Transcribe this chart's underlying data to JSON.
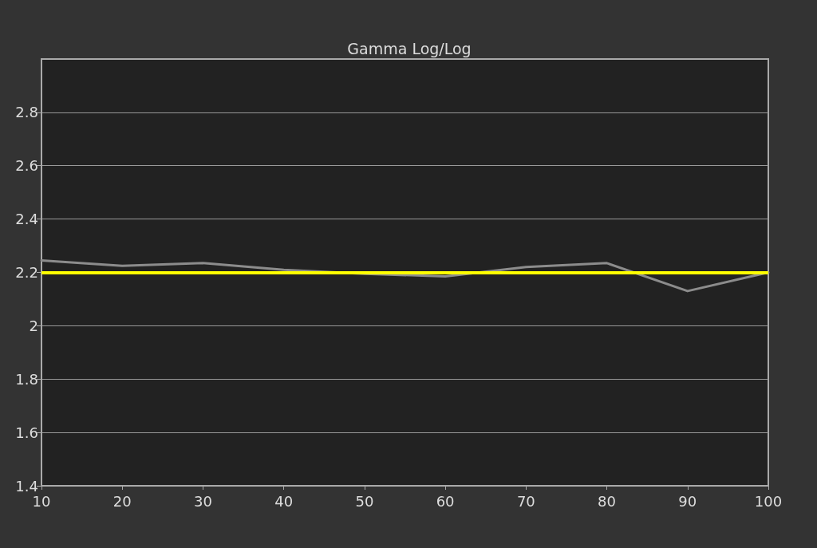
{
  "chart_data": {
    "type": "line",
    "title": "Gamma Log/Log",
    "x": [
      10,
      20,
      30,
      40,
      50,
      60,
      70,
      80,
      90,
      100
    ],
    "series": [
      {
        "color": "#8c8c8c",
        "values": [
          2.245,
          2.225,
          2.235,
          2.21,
          2.195,
          2.185,
          2.22,
          2.235,
          2.13,
          2.2
        ]
      }
    ],
    "xlim": [
      10,
      100
    ],
    "xticks": [
      10,
      20,
      30,
      40,
      50,
      60,
      70,
      80,
      90,
      100
    ],
    "ylim": [
      1.4,
      3.0
    ],
    "yticks": [
      1.4,
      1.6,
      1.8,
      2,
      2.2,
      2.4,
      2.6,
      2.8
    ],
    "ref_lines": [
      {
        "axis": "y",
        "value": 2.2,
        "color": "#ffff00"
      }
    ],
    "grid": "y",
    "marker": "none",
    "line_style": "solid"
  }
}
